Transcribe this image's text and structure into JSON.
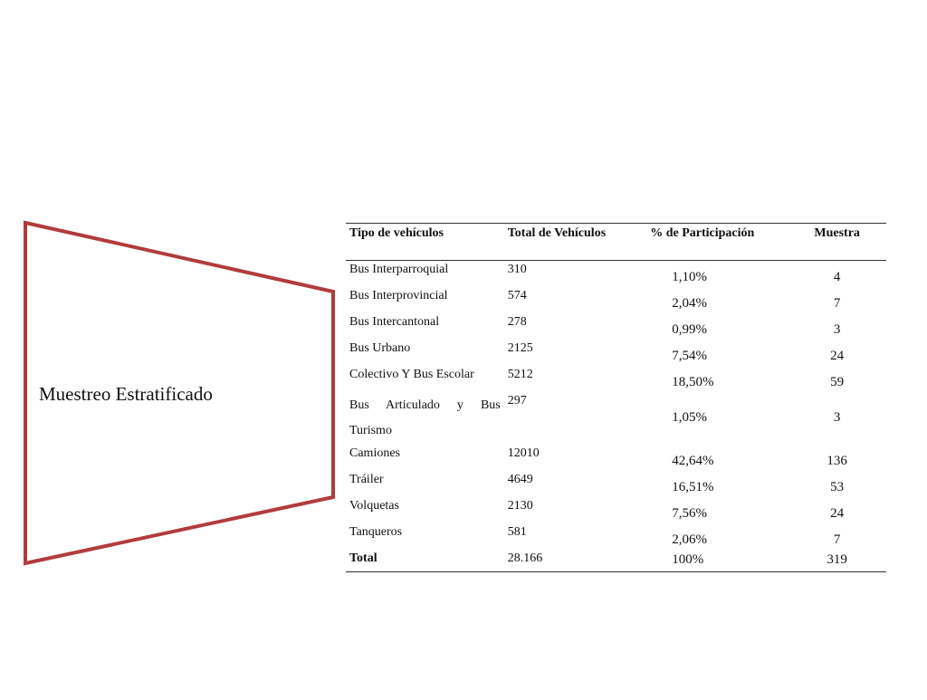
{
  "shape": {
    "label": "Muestreo Estratificado",
    "stroke_color": "#b23b3b"
  },
  "table": {
    "headers": [
      "Tipo de vehículos",
      "Total de Vehículos",
      "% de Participación",
      "Muestra"
    ],
    "rows": [
      {
        "tipo": "Bus Interparroquial",
        "total": "310",
        "participacion": "1,10%",
        "muestra": "4"
      },
      {
        "tipo": "Bus Interprovincial",
        "total": "574",
        "participacion": "2,04%",
        "muestra": "7"
      },
      {
        "tipo": "Bus Intercantonal",
        "total": "278",
        "participacion": "0,99%",
        "muestra": "3"
      },
      {
        "tipo": "Bus Urbano",
        "total": "2125",
        "participacion": "7,54%",
        "muestra": "24"
      },
      {
        "tipo": "Colectivo Y Bus Escolar",
        "total": "5212",
        "participacion": "18,50%",
        "muestra": "59"
      },
      {
        "tipo": "Bus Articulado y Bus Turismo",
        "total": "297",
        "participacion": "1,05%",
        "muestra": "3"
      },
      {
        "tipo": "Camiones",
        "total": "12010",
        "participacion": "42,64%",
        "muestra": "136"
      },
      {
        "tipo": "Tráiler",
        "total": "4649",
        "participacion": "16,51%",
        "muestra": "53"
      },
      {
        "tipo": "Volquetas",
        "total": "2130",
        "participacion": "7,56%",
        "muestra": "24"
      },
      {
        "tipo": "Tanqueros",
        "total": "581",
        "participacion": "2,06%",
        "muestra": "7"
      }
    ],
    "total_row": {
      "tipo": "Total",
      "total": "28.166",
      "participacion": "100%",
      "muestra": "319"
    }
  }
}
